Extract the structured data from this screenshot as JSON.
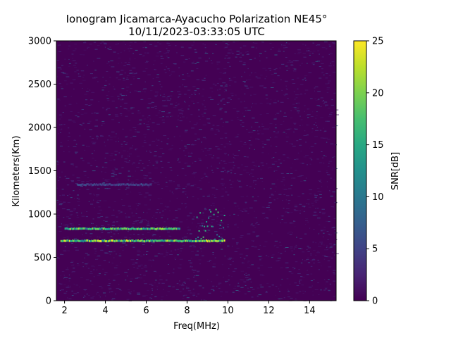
{
  "chart_data": {
    "type": "heatmap",
    "title_line1": "Ionogram Jicamarca-Ayacucho Polarization NE45°",
    "title_line2": "10/11/2023-03:33:05 UTC",
    "xlabel": "Freq(MHz)",
    "ylabel": "Kilometers(Km)",
    "xlim": [
      1.6,
      15.3
    ],
    "ylim": [
      0,
      3000
    ],
    "xticks": [
      2,
      4,
      6,
      8,
      10,
      12,
      14
    ],
    "yticks": [
      0,
      500,
      1000,
      1500,
      2000,
      2500,
      3000
    ],
    "colorbar": {
      "label": "SNR[dB]",
      "range": [
        0,
        25
      ],
      "ticks": [
        0,
        5,
        10,
        15,
        20,
        25
      ],
      "colormap": "viridis"
    },
    "traces": [
      {
        "name": "O-trace low",
        "x_range": [
          1.8,
          9.8
        ],
        "height_km": 690,
        "peak_snr": 25
      },
      {
        "name": "O-trace high",
        "x_range": [
          2.0,
          7.6
        ],
        "height_km": 830,
        "peak_snr": 22
      },
      {
        "name": "multi-hop",
        "x_range": [
          2.6,
          6.2
        ],
        "height_km": 1340,
        "peak_snr": 6
      },
      {
        "name": "spread echoes",
        "x_range": [
          8.4,
          9.8
        ],
        "height_km": [
          700,
          1050
        ],
        "peak_snr": 18
      }
    ]
  }
}
